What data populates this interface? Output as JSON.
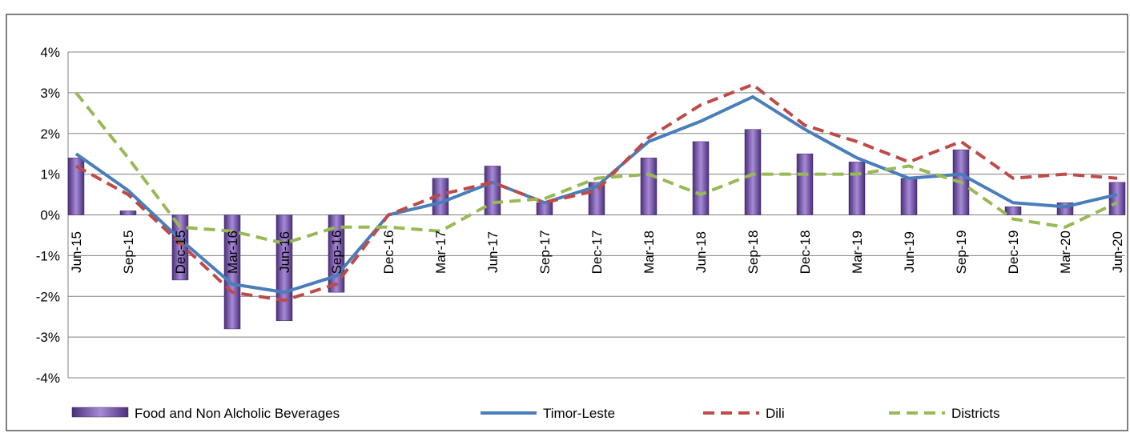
{
  "chart_data": {
    "type": "bar-line",
    "categories": [
      "Jun-15",
      "Sep-15",
      "Dec-15",
      "Mar-16",
      "Jun-16",
      "Sep-16",
      "Dec-16",
      "Mar-17",
      "Jun-17",
      "Sep-17",
      "Dec-17",
      "Mar-18",
      "Jun-18",
      "Sep-18",
      "Dec-18",
      "Mar-19",
      "Jun-19",
      "Sep-19",
      "Dec-19",
      "Mar-20",
      "Jun-20"
    ],
    "series": [
      {
        "name": "Food and Non Alcholic Beverages",
        "type": "bar",
        "color": "#7a5aa8",
        "values": [
          1.4,
          0.1,
          -1.6,
          -2.8,
          -2.6,
          -1.9,
          0,
          0.9,
          1.2,
          0.3,
          0.8,
          1.4,
          1.8,
          2.1,
          1.5,
          1.3,
          0.9,
          1.6,
          0.2,
          0.3,
          0.8
        ]
      },
      {
        "name": "Timor-Leste",
        "type": "line",
        "dash": "solid",
        "color": "#4a7ebb",
        "values": [
          1.5,
          0.6,
          -0.6,
          -1.7,
          -1.9,
          -1.5,
          0,
          0.3,
          0.8,
          0.3,
          0.7,
          1.8,
          2.3,
          2.9,
          2.1,
          1.4,
          0.9,
          1.0,
          0.3,
          0.2,
          0.5
        ]
      },
      {
        "name": "Dili",
        "type": "line",
        "dash": "dashed",
        "color": "#be4b48",
        "values": [
          1.2,
          0.5,
          -0.7,
          -1.9,
          -2.1,
          -1.7,
          0,
          0.5,
          0.8,
          0.3,
          0.6,
          1.9,
          2.7,
          3.2,
          2.2,
          1.8,
          1.3,
          1.8,
          0.9,
          1.0,
          0.9
        ]
      },
      {
        "name": "Districts",
        "type": "line",
        "dash": "dashed",
        "color": "#98b954",
        "values": [
          3.0,
          1.4,
          -0.3,
          -0.4,
          -0.7,
          -0.3,
          -0.3,
          -0.4,
          0.3,
          0.4,
          0.9,
          1.0,
          0.5,
          1.0,
          1.0,
          1.0,
          1.2,
          0.8,
          -0.1,
          -0.3,
          0.3
        ]
      }
    ],
    "ylim": [
      -4,
      4
    ],
    "yticks": [
      {
        "value": -4,
        "label": "-4%"
      },
      {
        "value": -3,
        "label": "-3%"
      },
      {
        "value": -2,
        "label": "-2%"
      },
      {
        "value": -1,
        "label": "-1%"
      },
      {
        "value": 0,
        "label": "0%"
      },
      {
        "value": 1,
        "label": "1%"
      },
      {
        "value": 2,
        "label": "2%"
      },
      {
        "value": 3,
        "label": "3%"
      },
      {
        "value": 4,
        "label": "4%"
      }
    ],
    "grid": true,
    "legend": "bottom"
  }
}
